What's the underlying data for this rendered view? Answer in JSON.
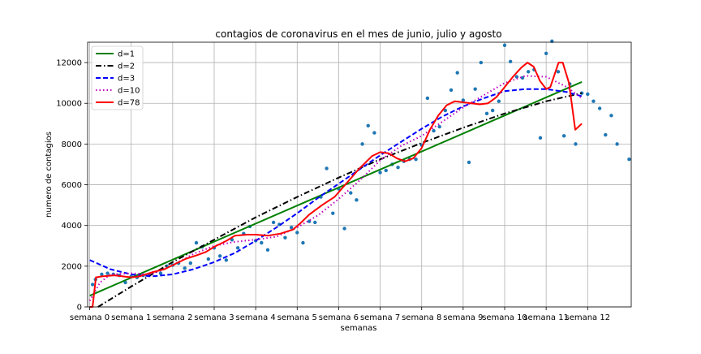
{
  "chart_data": {
    "type": "scatter",
    "title": "contagios de coronavirus en el mes de junio, julio y agosto",
    "xlabel": "semanas",
    "ylabel": "numero de contagios",
    "xlim": [
      -0.05,
      13.05
    ],
    "ylim": [
      0,
      13000
    ],
    "grid": true,
    "legend_position": "top-left",
    "x_ticks": [
      {
        "pos": 0,
        "label": "semana 0"
      },
      {
        "pos": 1,
        "label": "semana 1"
      },
      {
        "pos": 2,
        "label": "semana 2"
      },
      {
        "pos": 3,
        "label": "semana 3"
      },
      {
        "pos": 4,
        "label": "semana 4"
      },
      {
        "pos": 5,
        "label": "semana 5"
      },
      {
        "pos": 6,
        "label": "semana 6"
      },
      {
        "pos": 7,
        "label": "semana 7"
      },
      {
        "pos": 8,
        "label": "semana 8"
      },
      {
        "pos": 9,
        "label": "semana 9"
      },
      {
        "pos": 10,
        "label": "semana 10"
      },
      {
        "pos": 11,
        "label": "semana 11"
      },
      {
        "pos": 12,
        "label": "semana 12"
      }
    ],
    "y_ticks": [
      0,
      2000,
      4000,
      6000,
      8000,
      10000,
      12000
    ],
    "points": {
      "color": "#1f77b4",
      "data": [
        [
          0.07,
          1100
        ],
        [
          0.14,
          1350
        ],
        [
          0.29,
          1600
        ],
        [
          0.43,
          1650
        ],
        [
          0.57,
          1600
        ],
        [
          0.71,
          1550
        ],
        [
          0.86,
          1200
        ],
        [
          1.0,
          1500
        ],
        [
          1.14,
          1450
        ],
        [
          1.29,
          1550
        ],
        [
          1.43,
          1600
        ],
        [
          1.71,
          1650
        ],
        [
          1.86,
          2000
        ],
        [
          2.0,
          2050
        ],
        [
          2.14,
          2150
        ],
        [
          2.29,
          1900
        ],
        [
          2.43,
          2150
        ],
        [
          2.57,
          3150
        ],
        [
          2.71,
          2950
        ],
        [
          2.86,
          2350
        ],
        [
          3.0,
          2900
        ],
        [
          3.14,
          2500
        ],
        [
          3.29,
          2300
        ],
        [
          3.43,
          3300
        ],
        [
          3.57,
          2900
        ],
        [
          3.71,
          3600
        ],
        [
          3.86,
          3950
        ],
        [
          4.0,
          3250
        ],
        [
          4.14,
          3150
        ],
        [
          4.29,
          2800
        ],
        [
          4.43,
          4150
        ],
        [
          4.57,
          4050
        ],
        [
          4.71,
          3400
        ],
        [
          4.86,
          3900
        ],
        [
          5.0,
          3650
        ],
        [
          5.14,
          3150
        ],
        [
          5.29,
          4200
        ],
        [
          5.43,
          4150
        ],
        [
          5.57,
          5400
        ],
        [
          5.71,
          6800
        ],
        [
          5.86,
          4600
        ],
        [
          6.0,
          5800
        ],
        [
          6.14,
          3850
        ],
        [
          6.29,
          5600
        ],
        [
          6.43,
          5250
        ],
        [
          6.57,
          8000
        ],
        [
          6.71,
          8900
        ],
        [
          6.86,
          8550
        ],
        [
          7.0,
          6600
        ],
        [
          7.14,
          6700
        ],
        [
          7.29,
          7000
        ],
        [
          7.43,
          6850
        ],
        [
          7.57,
          7150
        ],
        [
          7.71,
          7250
        ],
        [
          7.86,
          7250
        ],
        [
          8.0,
          7950
        ],
        [
          8.14,
          10250
        ],
        [
          8.29,
          8650
        ],
        [
          8.43,
          8850
        ],
        [
          8.57,
          9650
        ],
        [
          8.71,
          10650
        ],
        [
          8.86,
          11500
        ],
        [
          9.0,
          10150
        ],
        [
          9.14,
          7100
        ],
        [
          9.29,
          10700
        ],
        [
          9.43,
          12000
        ],
        [
          9.57,
          9500
        ],
        [
          9.71,
          9650
        ],
        [
          9.86,
          10100
        ],
        [
          10.0,
          12850
        ],
        [
          10.14,
          12050
        ],
        [
          10.29,
          11300
        ],
        [
          10.43,
          11250
        ],
        [
          10.57,
          11550
        ],
        [
          10.71,
          11650
        ],
        [
          10.86,
          8300
        ],
        [
          11.0,
          12450
        ],
        [
          11.14,
          13050
        ],
        [
          11.29,
          11550
        ],
        [
          11.43,
          8400
        ],
        [
          11.57,
          10950
        ],
        [
          11.71,
          8000
        ],
        [
          11.86,
          10500
        ],
        [
          12.0,
          10450
        ],
        [
          12.14,
          10100
        ],
        [
          12.29,
          9750
        ],
        [
          12.43,
          8450
        ],
        [
          12.57,
          9400
        ],
        [
          12.71,
          8000
        ],
        [
          13.0,
          7250
        ]
      ]
    },
    "series": [
      {
        "name": "d=1",
        "color": "#008000",
        "dash": "solid",
        "x": [
          0,
          11.86
        ],
        "y": [
          550,
          11050
        ]
      },
      {
        "name": "d=2",
        "color": "#000000",
        "dash": "dashdot",
        "x": [
          0.2,
          1,
          2,
          3,
          4,
          5,
          6,
          7,
          8,
          9,
          10,
          11,
          11.86
        ],
        "y": [
          0,
          1000,
          2200,
          3300,
          4400,
          5400,
          6350,
          7250,
          8050,
          8800,
          9500,
          10100,
          10500
        ]
      },
      {
        "name": "d=3",
        "color": "#0000ff",
        "dash": "dashed",
        "x": [
          0,
          0.5,
          1,
          1.5,
          2,
          2.5,
          3,
          3.5,
          4,
          4.5,
          5,
          5.5,
          6,
          6.5,
          7,
          7.5,
          8,
          8.5,
          9,
          9.5,
          10,
          10.5,
          11,
          11.5,
          11.86
        ],
        "y": [
          2300,
          1850,
          1600,
          1500,
          1600,
          1850,
          2200,
          2650,
          3250,
          3900,
          4600,
          5350,
          6050,
          6750,
          7450,
          8100,
          8750,
          9350,
          9850,
          10250,
          10600,
          10700,
          10700,
          10550,
          10350
        ]
      },
      {
        "name": "d=10",
        "color": "#bf00bf",
        "dash": "dotted",
        "x": [
          0,
          0.25,
          0.5,
          1,
          1.5,
          2,
          2.5,
          3,
          3.5,
          4,
          4.5,
          5,
          5.5,
          6,
          6.5,
          7,
          7.5,
          8,
          8.5,
          9,
          9.5,
          10,
          10.5,
          11,
          11.5,
          11.86
        ],
        "y": [
          300,
          1200,
          1600,
          1650,
          1600,
          2050,
          2600,
          3000,
          3200,
          3300,
          3450,
          3900,
          4500,
          5300,
          6200,
          7200,
          7900,
          8400,
          9100,
          9800,
          10400,
          11000,
          11350,
          11300,
          10800,
          10250
        ]
      },
      {
        "name": "d=78",
        "color": "#ff0000",
        "dash": "solid",
        "x": [
          0,
          0.07,
          0.15,
          0.3,
          0.6,
          0.8,
          1.0,
          1.2,
          1.5,
          1.8,
          2.0,
          2.3,
          2.6,
          2.8,
          3.0,
          3.3,
          3.5,
          3.8,
          4.0,
          4.3,
          4.6,
          4.9,
          5.1,
          5.3,
          5.6,
          5.9,
          6.2,
          6.5,
          6.8,
          7.0,
          7.2,
          7.4,
          7.6,
          7.8,
          8.0,
          8.2,
          8.4,
          8.6,
          8.8,
          9.0,
          9.2,
          9.4,
          9.6,
          9.8,
          10.0,
          10.2,
          10.4,
          10.55,
          10.7,
          10.85,
          11.0,
          11.1,
          11.2,
          11.3,
          11.4,
          11.55,
          11.7,
          11.86
        ],
        "y": [
          0,
          0,
          1450,
          1500,
          1550,
          1500,
          1450,
          1500,
          1700,
          1850,
          2050,
          2350,
          2550,
          2700,
          2950,
          3250,
          3500,
          3550,
          3550,
          3500,
          3600,
          3800,
          4150,
          4550,
          5000,
          5400,
          6100,
          6800,
          7400,
          7600,
          7550,
          7300,
          7150,
          7300,
          7800,
          8700,
          9400,
          9900,
          10100,
          10050,
          10000,
          9950,
          10000,
          10300,
          10800,
          11300,
          11750,
          12000,
          11800,
          11100,
          10700,
          10800,
          11400,
          12000,
          12000,
          11000,
          8700,
          9000
        ]
      }
    ]
  }
}
